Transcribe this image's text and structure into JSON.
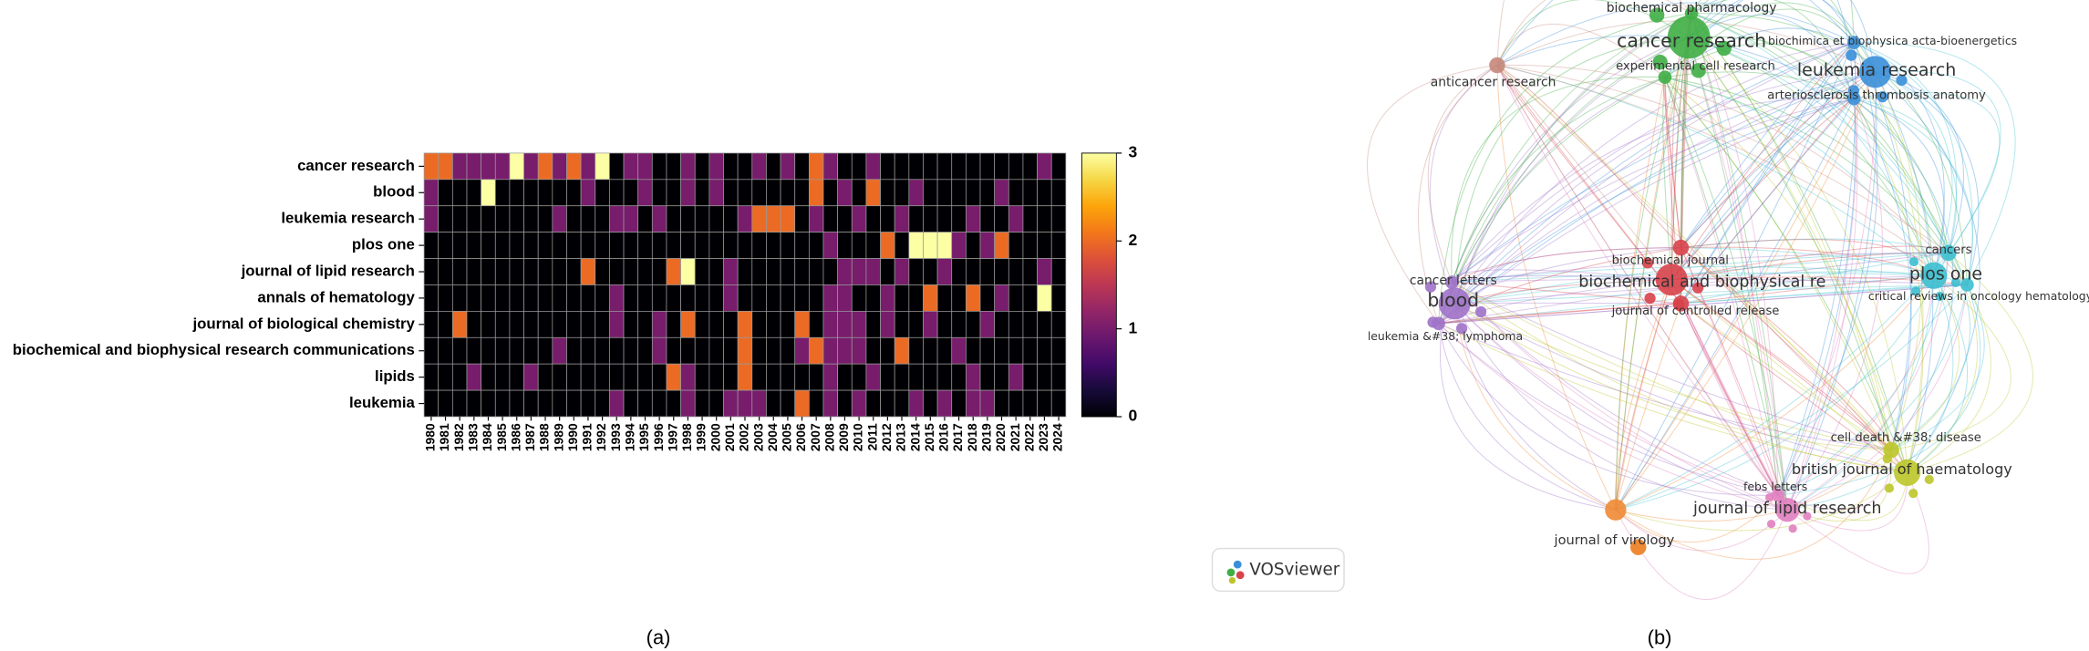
{
  "chart_data": [
    {
      "type": "heatmap",
      "categories": [
        "1980",
        "1981",
        "1982",
        "1983",
        "1984",
        "1985",
        "1986",
        "1987",
        "1988",
        "1989",
        "1990",
        "1991",
        "1992",
        "1993",
        "1994",
        "1995",
        "1996",
        "1997",
        "1998",
        "1999",
        "2000",
        "2001",
        "2002",
        "2003",
        "2004",
        "2005",
        "2006",
        "2007",
        "2008",
        "2009",
        "2010",
        "2011",
        "2012",
        "2013",
        "2014",
        "2015",
        "2016",
        "2017",
        "2018",
        "2019",
        "2020",
        "2021",
        "2022",
        "2023",
        "2024"
      ],
      "y_categories": [
        "cancer research",
        "blood",
        "leukemia research",
        "plos one",
        "journal of lipid research",
        "annals of hematology",
        "journal of biological chemistry",
        "biochemical and biophysical research communications",
        "lipids",
        "leukemia"
      ],
      "values": [
        [
          2,
          2,
          1,
          1,
          1,
          1,
          3,
          1,
          2,
          1,
          2,
          1,
          3,
          0,
          1,
          1,
          0,
          0,
          1,
          0,
          1,
          0,
          0,
          1,
          0,
          1,
          0,
          2,
          1,
          0,
          0,
          1,
          0,
          0,
          0,
          0,
          0,
          0,
          0,
          0,
          0,
          0,
          0,
          1,
          0
        ],
        [
          1,
          0,
          0,
          0,
          3,
          0,
          0,
          0,
          0,
          0,
          0,
          1,
          0,
          0,
          0,
          1,
          0,
          0,
          1,
          0,
          1,
          0,
          0,
          0,
          0,
          0,
          0,
          2,
          0,
          1,
          0,
          2,
          0,
          0,
          1,
          0,
          0,
          0,
          0,
          0,
          1,
          0,
          0,
          0,
          0
        ],
        [
          1,
          0,
          0,
          0,
          0,
          0,
          0,
          0,
          0,
          1,
          0,
          0,
          0,
          1,
          1,
          0,
          1,
          0,
          0,
          0,
          0,
          0,
          1,
          2,
          2,
          2,
          0,
          1,
          0,
          0,
          1,
          0,
          0,
          1,
          0,
          0,
          0,
          0,
          1,
          0,
          0,
          1,
          0,
          0,
          0
        ],
        [
          0,
          0,
          0,
          0,
          0,
          0,
          0,
          0,
          0,
          0,
          0,
          0,
          0,
          0,
          0,
          0,
          0,
          0,
          0,
          0,
          0,
          0,
          0,
          0,
          0,
          0,
          0,
          0,
          1,
          0,
          0,
          0,
          2,
          0,
          3,
          3,
          3,
          1,
          0,
          1,
          2,
          0,
          0,
          0,
          0
        ],
        [
          0,
          0,
          0,
          0,
          0,
          0,
          0,
          0,
          0,
          0,
          0,
          2,
          0,
          0,
          0,
          0,
          0,
          2,
          3,
          0,
          0,
          1,
          0,
          0,
          0,
          0,
          0,
          0,
          0,
          1,
          1,
          1,
          0,
          1,
          0,
          0,
          1,
          0,
          0,
          0,
          0,
          0,
          0,
          1,
          0
        ],
        [
          0,
          0,
          0,
          0,
          0,
          0,
          0,
          0,
          0,
          0,
          0,
          0,
          0,
          1,
          0,
          0,
          0,
          0,
          0,
          0,
          0,
          1,
          0,
          0,
          0,
          0,
          0,
          0,
          1,
          1,
          0,
          0,
          1,
          0,
          0,
          2,
          0,
          0,
          2,
          0,
          1,
          0,
          0,
          3,
          0
        ],
        [
          0,
          0,
          2,
          0,
          0,
          0,
          0,
          0,
          0,
          0,
          0,
          0,
          0,
          1,
          0,
          0,
          1,
          0,
          2,
          0,
          0,
          0,
          2,
          0,
          0,
          0,
          2,
          0,
          1,
          1,
          1,
          0,
          1,
          0,
          0,
          1,
          0,
          0,
          0,
          1,
          0,
          0,
          0,
          0,
          0
        ],
        [
          0,
          0,
          0,
          0,
          0,
          0,
          0,
          0,
          0,
          1,
          0,
          0,
          0,
          0,
          0,
          0,
          1,
          0,
          0,
          0,
          0,
          0,
          2,
          0,
          0,
          0,
          1,
          2,
          1,
          1,
          1,
          0,
          0,
          2,
          0,
          0,
          0,
          1,
          0,
          0,
          0,
          0,
          0,
          0,
          0
        ],
        [
          0,
          0,
          0,
          1,
          0,
          0,
          0,
          1,
          0,
          0,
          0,
          0,
          0,
          0,
          0,
          0,
          0,
          2,
          1,
          0,
          0,
          0,
          2,
          0,
          0,
          0,
          0,
          0,
          1,
          0,
          0,
          1,
          0,
          0,
          0,
          0,
          0,
          0,
          1,
          0,
          0,
          1,
          0,
          0,
          0
        ],
        [
          0,
          0,
          0,
          0,
          0,
          0,
          0,
          0,
          0,
          0,
          0,
          0,
          0,
          1,
          0,
          0,
          0,
          0,
          1,
          0,
          0,
          1,
          1,
          1,
          0,
          0,
          2,
          0,
          1,
          0,
          1,
          0,
          0,
          0,
          1,
          0,
          1,
          0,
          1,
          1,
          0,
          0,
          0,
          0,
          0
        ]
      ],
      "colormap": "inferno",
      "zlim": [
        0,
        3
      ],
      "zticks": [
        0,
        1,
        2,
        3
      ]
    }
  ],
  "network": {
    "nodes": [
      {
        "label": "biochemical pharmacology",
        "color": "#3fae45"
      },
      {
        "label": "cancer research",
        "color": "#3fae45"
      },
      {
        "label": "experimental cell research",
        "color": "#3fae45"
      },
      {
        "label": "biochimica et biophysica acta-bioenergetics",
        "color": "#3a8fd9"
      },
      {
        "label": "leukemia research",
        "color": "#3a8fd9"
      },
      {
        "label": "arteriosclerosis thrombosis anatomy",
        "color": "#3a8fd9"
      },
      {
        "label": "anticancer research",
        "color": "#c5877a"
      },
      {
        "label": "cancers",
        "color": "#3cbfd0"
      },
      {
        "label": "plos one",
        "color": "#3cbfd0"
      },
      {
        "label": "critical reviews in oncology hematology",
        "color": "#3cbfd0"
      },
      {
        "label": "biochemical journal",
        "color": "#d8434a"
      },
      {
        "label": "biochemical and biophysical re",
        "color": "#d8434a"
      },
      {
        "label": "journal of controlled release",
        "color": "#d8434a"
      },
      {
        "label": "cancer letters",
        "color": "#9f72c8"
      },
      {
        "label": "blood",
        "color": "#9f72c8"
      },
      {
        "label": "leukemia &#38; lymphoma",
        "color": "#9f72c8"
      },
      {
        "label": "cell death &#38; disease",
        "color": "#bcc62a"
      },
      {
        "label": "british journal of haematology",
        "color": "#bcc62a"
      },
      {
        "label": "febs letters",
        "color": "#e07fc0"
      },
      {
        "label": "journal of lipid research",
        "color": "#e07fc0"
      },
      {
        "label": "journal of virology",
        "color": "#ef8a34"
      }
    ],
    "logo": "VOSviewer"
  },
  "captions": [
    "(a)",
    "(b)"
  ]
}
